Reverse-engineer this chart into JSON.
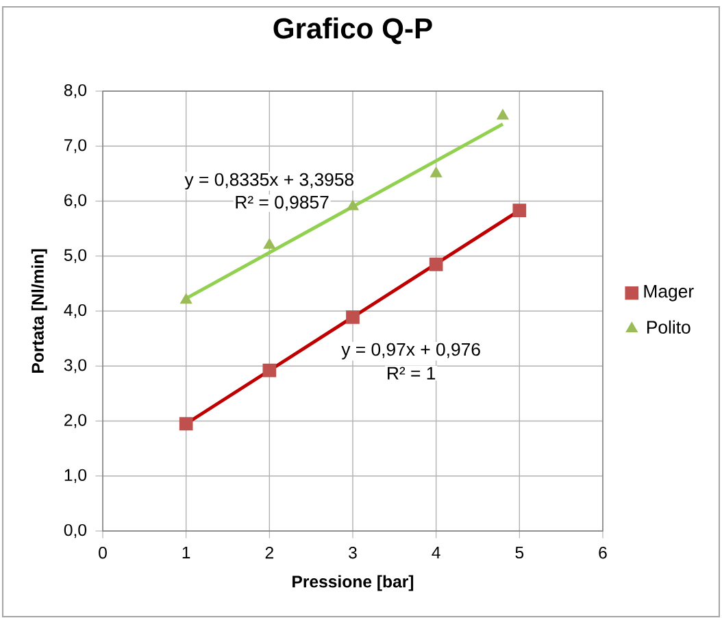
{
  "chart_data": {
    "type": "scatter",
    "title": "Grafico Q-P",
    "xlabel": "Pressione [bar]",
    "ylabel": "Portata [Nl/min]",
    "xlim": [
      0,
      6
    ],
    "ylim": [
      0,
      8
    ],
    "xticks": [
      0,
      1,
      2,
      3,
      4,
      5,
      6
    ],
    "yticks": [
      {
        "value": 0,
        "label": "0,0"
      },
      {
        "value": 1,
        "label": "1,0"
      },
      {
        "value": 2,
        "label": "2,0"
      },
      {
        "value": 3,
        "label": "3,0"
      },
      {
        "value": 4,
        "label": "4,0"
      },
      {
        "value": 5,
        "label": "5,0"
      },
      {
        "value": 6,
        "label": "6,0"
      },
      {
        "value": 7,
        "label": "7,0"
      },
      {
        "value": 8,
        "label": "8,0"
      }
    ],
    "grid": true,
    "legend": "right",
    "series": [
      {
        "name": "Mager",
        "marker": "square",
        "color": "#c0504d",
        "x": [
          1,
          2,
          3,
          4,
          5
        ],
        "values": [
          1.95,
          2.92,
          3.89,
          4.85,
          5.83
        ]
      },
      {
        "name": "Polito",
        "marker": "triangle",
        "color": "#9bbb59",
        "x": [
          1,
          2,
          3,
          4,
          4.8
        ],
        "values": [
          4.2,
          5.2,
          5.9,
          6.5,
          7.55
        ]
      },
      {
        "type": "line",
        "marker": "none",
        "color": "#c00000",
        "x": [
          1,
          5
        ],
        "values": [
          1.95,
          5.83
        ]
      },
      {
        "type": "line",
        "marker": "none",
        "color": "#92d050",
        "x": [
          1,
          4.8
        ],
        "values": [
          4.23,
          7.4
        ]
      }
    ],
    "annotations": [
      "y = 0,8335x + 3,3958",
      "R² = 0,9857",
      "y = 0,97x + 0,976",
      "R² = 1"
    ]
  }
}
